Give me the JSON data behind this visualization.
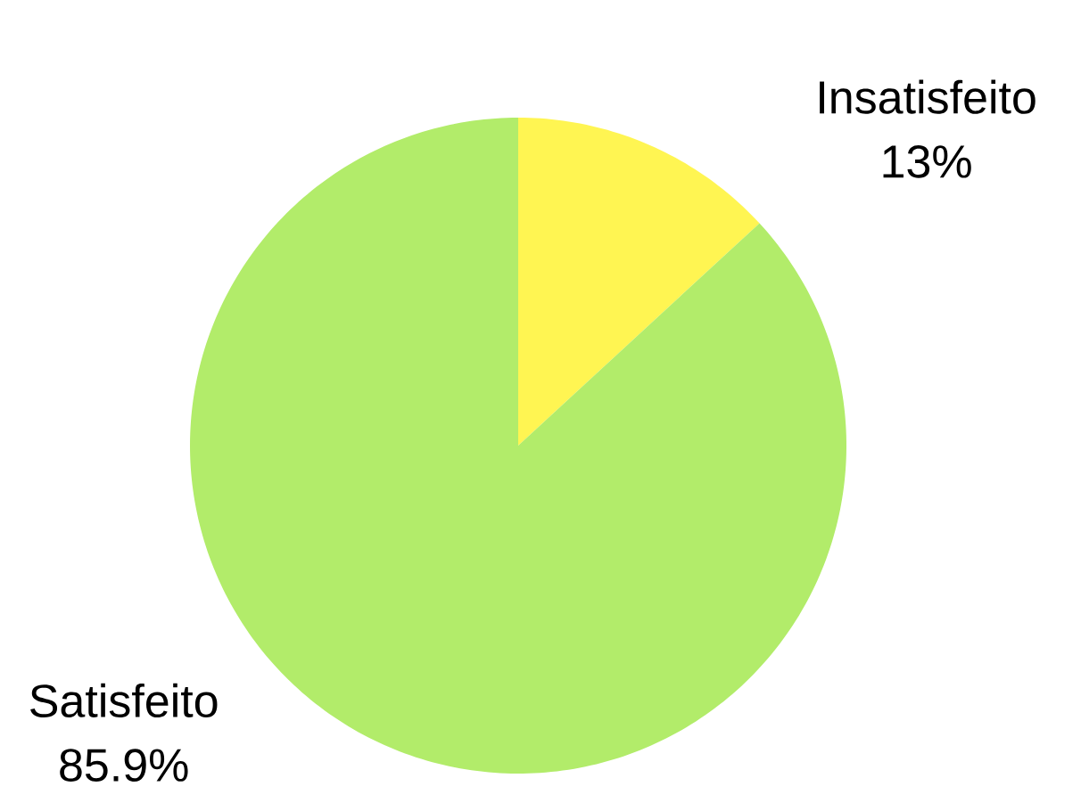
{
  "chart_data": {
    "type": "pie",
    "categories": [
      "Insatisfeito",
      "Satisfeito"
    ],
    "values": [
      13,
      85.9
    ],
    "value_labels": [
      "13%",
      "85.9%"
    ],
    "colors": [
      "#fff552",
      "#b2ec6a"
    ]
  }
}
